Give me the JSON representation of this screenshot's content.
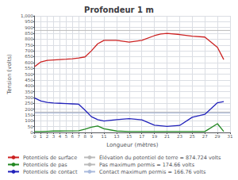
{
  "chart_data": {
    "type": "line",
    "title": "Profondeur 1 m",
    "xlabel": "Longueur (mètres)",
    "ylabel": "Tension (volts)",
    "xlim": [
      0,
      31
    ],
    "ylim": [
      0,
      1000
    ],
    "xticks": [
      0,
      1,
      2,
      3,
      4,
      5,
      6,
      7,
      8,
      9,
      11,
      13,
      15,
      17,
      19,
      21,
      23,
      25,
      27,
      29,
      31
    ],
    "yticks": [
      0,
      50,
      100,
      150,
      200,
      250,
      300,
      350,
      400,
      450,
      500,
      550,
      600,
      650,
      700,
      750,
      800,
      850,
      900,
      950,
      1000
    ],
    "grid": true,
    "series": [
      {
        "name": "Potentiels de surface",
        "color": "#cc2222",
        "type": "line",
        "x": [
          0,
          1,
          2,
          3,
          4,
          5,
          6,
          7,
          8,
          9,
          10,
          11,
          13,
          15,
          17,
          19,
          20,
          21,
          23,
          25,
          27,
          29,
          30
        ],
        "values": [
          565,
          605,
          618,
          622,
          625,
          628,
          632,
          638,
          648,
          700,
          760,
          790,
          790,
          775,
          790,
          830,
          845,
          850,
          840,
          825,
          818,
          730,
          625
        ]
      },
      {
        "name": "Potentiels de pas",
        "color": "#228822",
        "type": "line",
        "x": [
          0,
          1,
          2,
          3,
          4,
          5,
          6,
          7,
          8,
          9,
          10,
          11,
          13,
          15,
          17,
          19,
          21,
          23,
          25,
          27,
          29,
          30
        ],
        "values": [
          8,
          8,
          10,
          12,
          12,
          13,
          13,
          14,
          28,
          45,
          55,
          32,
          12,
          8,
          8,
          8,
          8,
          8,
          8,
          8,
          75,
          8
        ]
      },
      {
        "name": "Potentiels de contact",
        "color": "#2222bb",
        "type": "line",
        "x": [
          0,
          1,
          2,
          3,
          4,
          5,
          6,
          7,
          8,
          9,
          10,
          11,
          13,
          15,
          17,
          19,
          21,
          23,
          25,
          27,
          29,
          30
        ],
        "values": [
          295,
          270,
          258,
          252,
          250,
          248,
          245,
          242,
          190,
          135,
          110,
          98,
          110,
          118,
          108,
          62,
          52,
          60,
          130,
          155,
          255,
          265
        ]
      },
      {
        "name": "Élévation du potentiel de terre = 874.724 volts",
        "color": "#bbbbbb",
        "type": "hline",
        "values": [
          874.724
        ]
      },
      {
        "name": "Pas maximum permis = 174.66 volts",
        "color": "#bbbbbb",
        "type": "hline",
        "values": [
          174.66
        ]
      },
      {
        "name": "Contact maximum permis = 166.76 volts",
        "color": "#aabbdd",
        "type": "hline",
        "values": [
          166.76
        ]
      }
    ]
  }
}
